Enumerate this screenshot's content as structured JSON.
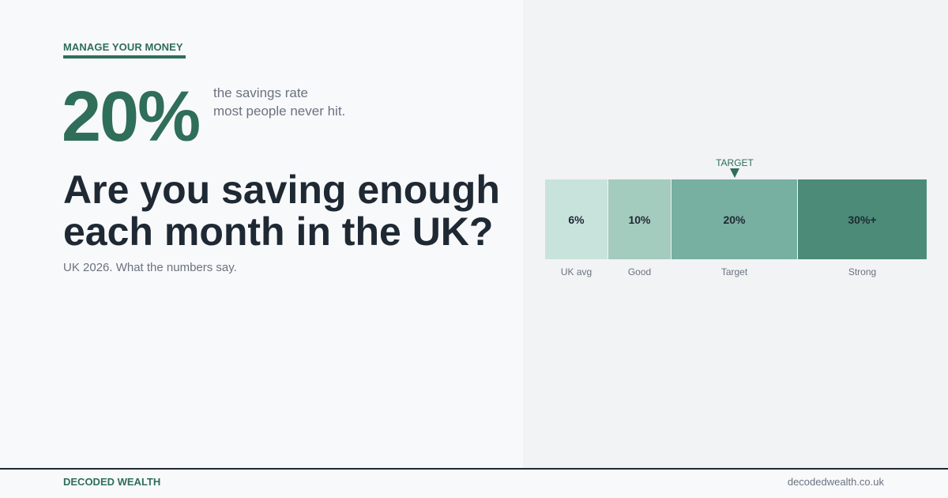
{
  "header": {
    "eyebrow": "MANAGE YOUR MONEY"
  },
  "stat": {
    "value": "20%",
    "caption_line1": "the savings rate",
    "caption_line2": "most people never hit."
  },
  "headline": {
    "line1": "Are you saving enough",
    "line2": "each month in the UK?"
  },
  "subline": "UK 2026. What the numbers say.",
  "scale": {
    "target_label": "TARGET",
    "segments": [
      {
        "value_label": "6%",
        "name": "UK avg",
        "color": "#c8e3dc"
      },
      {
        "value_label": "10%",
        "name": "Good",
        "color": "#a3cbbe"
      },
      {
        "value_label": "20%",
        "name": "Target",
        "color": "#77afa0"
      },
      {
        "value_label": "30%+",
        "name": "Strong",
        "color": "#4b8b78"
      }
    ]
  },
  "footer": {
    "brand": "DECODED WEALTH",
    "site": "decodedwealth.co.uk"
  },
  "colors": {
    "accent": "#2f6e58",
    "headline": "#1f2933",
    "muted": "#6b7280"
  }
}
